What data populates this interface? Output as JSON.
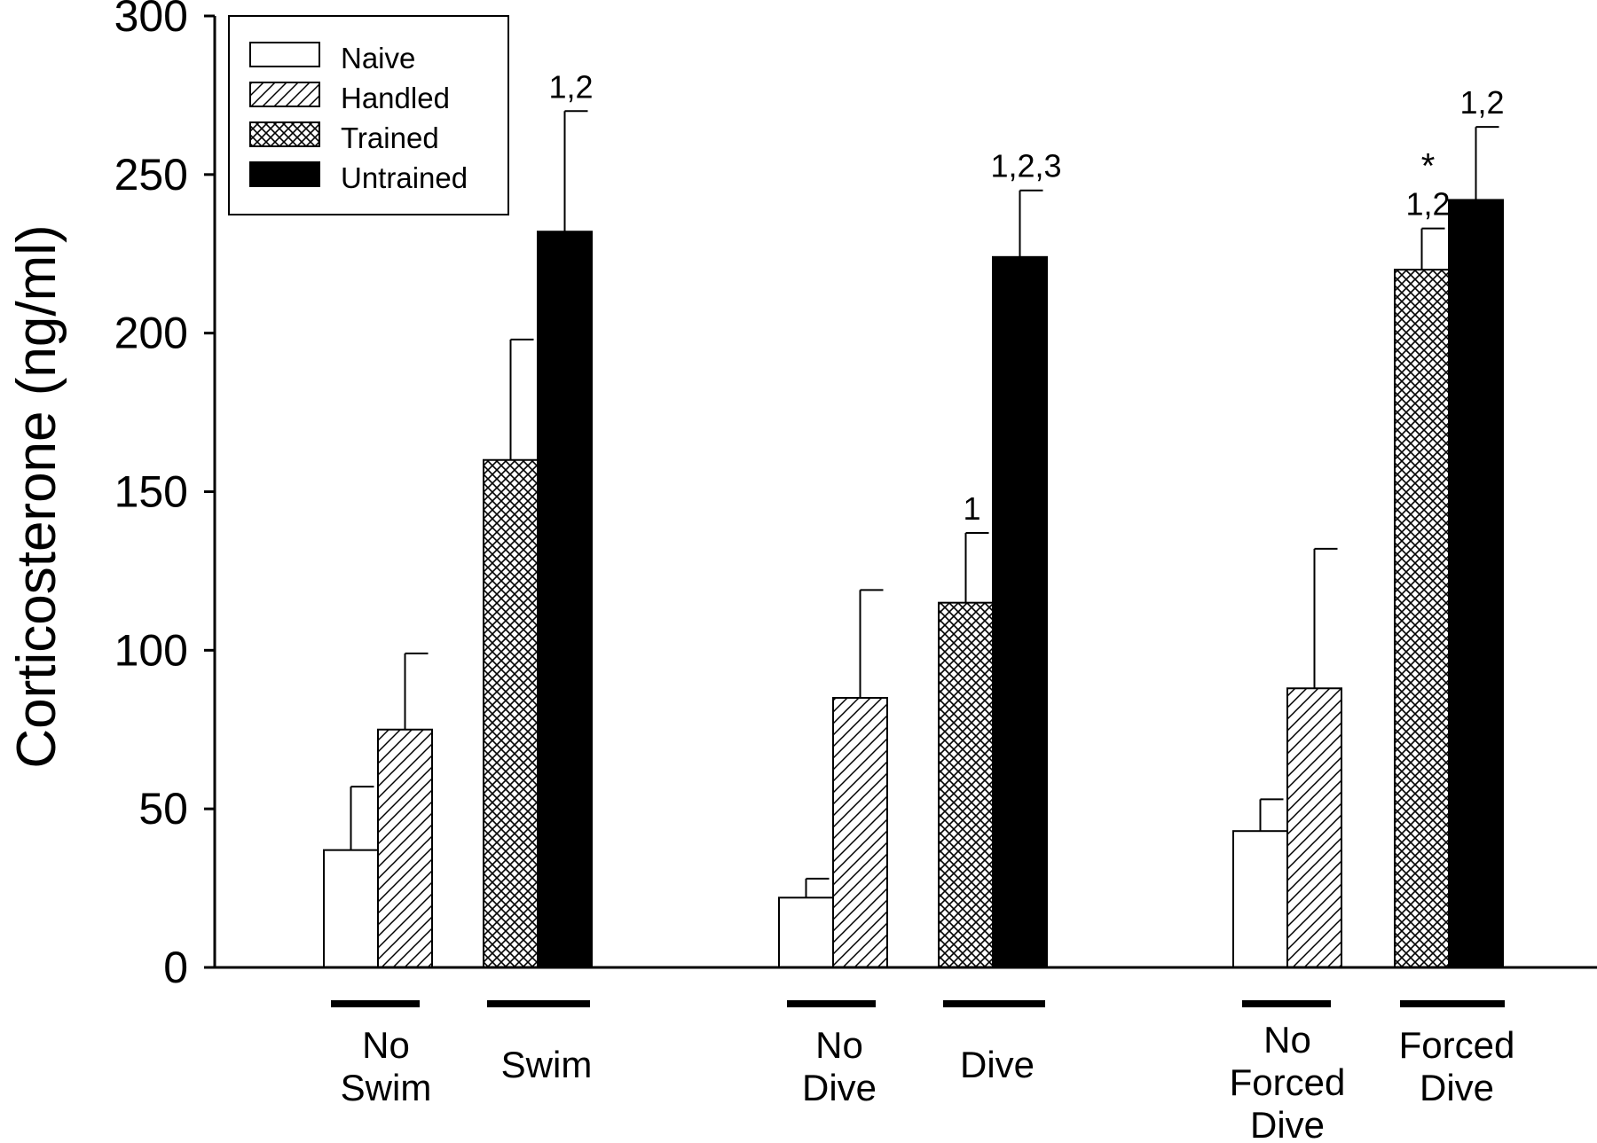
{
  "chart_data": {
    "type": "bar",
    "ylabel": "Corticosterone (ng/ml)",
    "xlabel": "",
    "ylim": [
      0,
      300
    ],
    "yticks": [
      "0",
      "50",
      "100",
      "150",
      "200",
      "250",
      "300"
    ],
    "legend": {
      "placement": "top-left",
      "entries": [
        {
          "name": "Naive",
          "fill": "open"
        },
        {
          "name": "Handled",
          "fill": "diagonal-hatch"
        },
        {
          "name": "Trained",
          "fill": "crosshatch"
        },
        {
          "name": "Untrained",
          "fill": "solid"
        }
      ]
    },
    "groups": [
      {
        "label": [
          "No",
          "Swim"
        ],
        "bars": [
          {
            "series": "Naive",
            "value": 37,
            "error": 20,
            "annotation": ""
          },
          {
            "series": "Handled",
            "value": 75,
            "error": 24,
            "annotation": ""
          }
        ]
      },
      {
        "label": [
          "Swim"
        ],
        "bars": [
          {
            "series": "Trained",
            "value": 160,
            "error": 38,
            "annotation": ""
          },
          {
            "series": "Untrained",
            "value": 232,
            "error": 38,
            "annotation": "1,2"
          }
        ]
      },
      {
        "label": [
          "No",
          "Dive"
        ],
        "bars": [
          {
            "series": "Naive",
            "value": 22,
            "error": 6,
            "annotation": ""
          },
          {
            "series": "Handled",
            "value": 85,
            "error": 34,
            "annotation": ""
          }
        ]
      },
      {
        "label": [
          "Dive"
        ],
        "bars": [
          {
            "series": "Trained",
            "value": 115,
            "error": 22,
            "annotation": "1"
          },
          {
            "series": "Untrained",
            "value": 224,
            "error": 21,
            "annotation": "1,2,3"
          }
        ]
      },
      {
        "label": [
          "No",
          "Forced",
          "Dive"
        ],
        "bars": [
          {
            "series": "Naive",
            "value": 43,
            "error": 10,
            "annotation": ""
          },
          {
            "series": "Handled",
            "value": 88,
            "error": 44,
            "annotation": ""
          }
        ]
      },
      {
        "label": [
          "Forced",
          "Dive"
        ],
        "bars": [
          {
            "series": "Trained",
            "value": 220,
            "error": 13,
            "annotation": "1,2",
            "star": "*"
          },
          {
            "series": "Untrained",
            "value": 242,
            "error": 23,
            "annotation": "1,2"
          }
        ]
      }
    ],
    "colors": {
      "ink": "#000000",
      "background": "#ffffff"
    }
  }
}
